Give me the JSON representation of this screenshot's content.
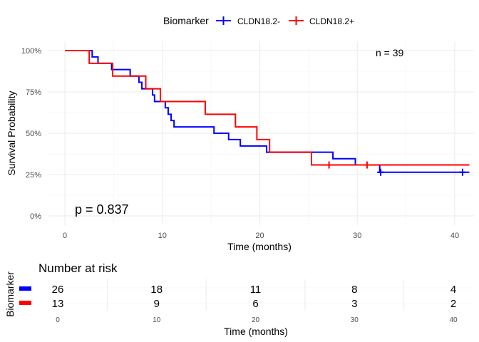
{
  "chart_data": [
    {
      "type": "line",
      "subtype": "kaplan-meier step",
      "title": "",
      "xlabel": "Time (months)",
      "ylabel": "Survival Probability",
      "xlim": [
        0,
        41.5
      ],
      "ylim": [
        0,
        1.03
      ],
      "x_ticks": [
        0,
        10,
        20,
        30,
        40
      ],
      "x_tick_labels": [
        "0",
        "10",
        "20",
        "30",
        "40"
      ],
      "y_ticks": [
        0,
        0.25,
        0.5,
        0.75,
        1.0
      ],
      "y_tick_labels": [
        "0%",
        "25%",
        "50%",
        "75%",
        "100%"
      ],
      "grid": true,
      "legend": {
        "position": "top",
        "title": "Biomarker",
        "entries": [
          "CLDN18.2-",
          "CLDN18.2+"
        ]
      },
      "annotations": {
        "n_text": "n = 39",
        "p_text": "p = 0.837"
      },
      "series": [
        {
          "name": "CLDN18.2-",
          "color": "#0000ff",
          "steps": [
            [
              0,
              1.0
            ],
            [
              2.8,
              0.962
            ],
            [
              3.4,
              0.923
            ],
            [
              4.8,
              0.885
            ],
            [
              6.7,
              0.846
            ],
            [
              7.6,
              0.808
            ],
            [
              7.9,
              0.769
            ],
            [
              9.0,
              0.731
            ],
            [
              9.2,
              0.692
            ],
            [
              10.3,
              0.654
            ],
            [
              10.6,
              0.615
            ],
            [
              10.9,
              0.577
            ],
            [
              11.2,
              0.538
            ],
            [
              15.3,
              0.5
            ],
            [
              16.8,
              0.462
            ],
            [
              18.0,
              0.423
            ],
            [
              20.7,
              0.385
            ],
            [
              27.5,
              0.346
            ],
            [
              29.8,
              0.308
            ],
            [
              32.3,
              0.264
            ],
            [
              41.5,
              0.264
            ]
          ],
          "censored": [
            [
              32.4,
              0.264
            ],
            [
              40.8,
              0.264
            ]
          ]
        },
        {
          "name": "CLDN18.2+",
          "color": "#ff0000",
          "steps": [
            [
              0,
              1.0
            ],
            [
              2.5,
              0.923
            ],
            [
              4.9,
              0.846
            ],
            [
              8.3,
              0.769
            ],
            [
              9.8,
              0.692
            ],
            [
              14.4,
              0.615
            ],
            [
              17.5,
              0.538
            ],
            [
              19.7,
              0.462
            ],
            [
              21.0,
              0.385
            ],
            [
              25.3,
              0.308
            ],
            [
              41.5,
              0.308
            ]
          ],
          "censored": [
            [
              27.1,
              0.308
            ],
            [
              31.0,
              0.308
            ]
          ]
        }
      ]
    },
    {
      "type": "table",
      "title": "Number at risk",
      "ylabel": "Biomarker",
      "xlabel": "Time (months)",
      "x_ticks": [
        0,
        10,
        20,
        30,
        40
      ],
      "x_tick_labels": [
        "0",
        "10",
        "20",
        "30",
        "40"
      ],
      "rows": [
        {
          "color": "#0000ff",
          "values": [
            "26",
            "18",
            "11",
            "8",
            "4"
          ]
        },
        {
          "color": "#ff0000",
          "values": [
            "13",
            "9",
            "6",
            "3",
            "2"
          ]
        }
      ]
    }
  ]
}
